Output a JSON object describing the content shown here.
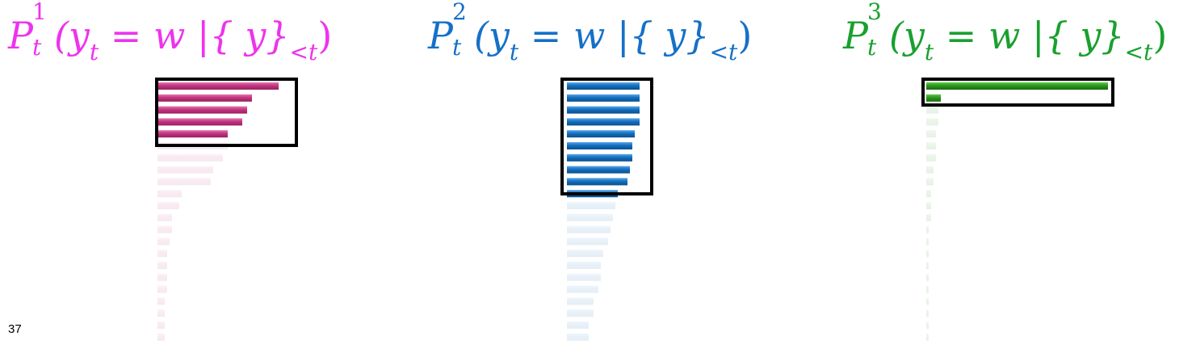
{
  "panels": [
    {
      "color": "#ee33ee",
      "bar_color": "#c2357e",
      "formula": {
        "P": "P",
        "sup": "1",
        "sub": "t",
        "body": "(y",
        "t": "t",
        "eq": "= w |{ y}",
        "lt": "<t",
        "close": ")"
      },
      "bar_values": [
        0.5,
        0.39,
        0.37,
        0.35,
        0.29,
        0.29,
        0.27,
        0.23,
        0.22,
        0.1,
        0.09,
        0.06,
        0.06,
        0.05,
        0.04,
        0.04,
        0.04,
        0.04,
        0.03,
        0.03,
        0.03,
        0.03
      ],
      "highlighted_count": 5
    },
    {
      "color": "#1570c7",
      "bar_color": "#1270be",
      "formula": {
        "P": "P",
        "sup": "2",
        "sub": "t",
        "body": "(y",
        "t": "t",
        "eq": "= w |{ y}",
        "lt": "<t",
        "close": ")"
      },
      "bar_values": [
        0.3,
        0.3,
        0.3,
        0.3,
        0.28,
        0.27,
        0.27,
        0.26,
        0.25,
        0.21,
        0.2,
        0.19,
        0.18,
        0.17,
        0.15,
        0.14,
        0.14,
        0.13,
        0.11,
        0.11,
        0.09,
        0.09
      ],
      "highlighted_count": 10
    },
    {
      "color": "#19a02e",
      "bar_color": "#2a961c",
      "formula": {
        "P": "P",
        "sup": "3",
        "sub": "t",
        "body": "(y",
        "t": "t",
        "eq": "= w |{ y}",
        "lt": "<t",
        "close": ")"
      },
      "bar_values": [
        0.75,
        0.06,
        0.05,
        0.05,
        0.04,
        0.04,
        0.04,
        0.03,
        0.03,
        0.02,
        0.02,
        0.02,
        0.01,
        0.01,
        0.01,
        0.01,
        0.01,
        0.01,
        0.01,
        0.01,
        0.01,
        0.01
      ],
      "highlighted_count": 2
    }
  ],
  "page_number": "37"
}
